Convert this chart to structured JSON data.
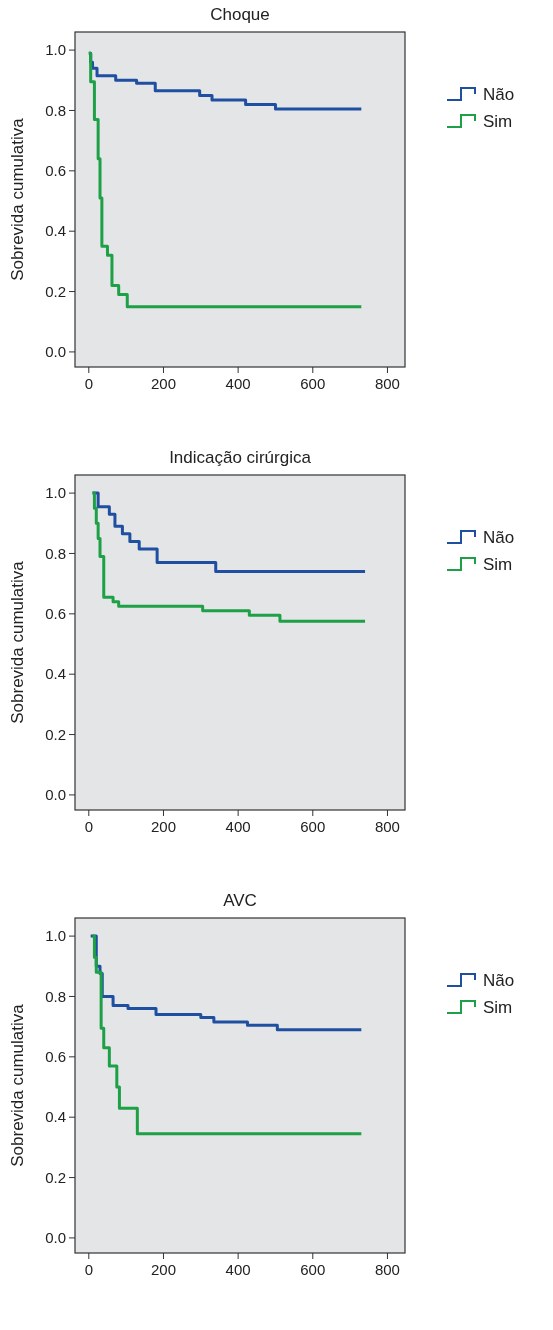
{
  "chart_data": [
    {
      "type": "step",
      "title": "Choque",
      "ylabel": "Sobrevida cumulativa",
      "xlim": [
        -37,
        847
      ],
      "ylim": [
        -0.05,
        1.06
      ],
      "xticks": [
        0,
        200,
        400,
        600,
        800
      ],
      "yticks": [
        {
          "value": 0,
          "label": "0.0"
        },
        {
          "value": 0.2,
          "label": "0.2"
        },
        {
          "value": 0.4,
          "label": "0.4"
        },
        {
          "value": 0.6,
          "label": "0.6"
        },
        {
          "value": 0.8,
          "label": "0.8"
        },
        {
          "value": 1,
          "label": "1.0"
        }
      ],
      "legend": "right",
      "grid": false,
      "series": [
        {
          "name": "Não",
          "color": "#1f4fa0",
          "x": [
            0,
            5,
            10,
            22,
            72,
            128,
            178,
            297,
            330,
            420,
            500,
            730
          ],
          "values": [
            0.99,
            0.96,
            0.94,
            0.915,
            0.9,
            0.89,
            0.865,
            0.85,
            0.835,
            0.82,
            0.805,
            0.805
          ]
        },
        {
          "name": "Sim",
          "color": "#1ea047",
          "x": [
            0,
            5,
            15,
            25,
            30,
            35,
            50,
            62,
            80,
            103,
            730
          ],
          "values": [
            0.99,
            0.895,
            0.77,
            0.64,
            0.51,
            0.35,
            0.32,
            0.22,
            0.19,
            0.15,
            0.15
          ]
        }
      ]
    },
    {
      "type": "step",
      "title": "Indicação cirúrgica",
      "ylabel": "Sobrevida cumulativa",
      "xlim": [
        -37,
        847
      ],
      "ylim": [
        -0.05,
        1.06
      ],
      "xticks": [
        0,
        200,
        400,
        600,
        800
      ],
      "yticks": [
        {
          "value": 0,
          "label": "0.0"
        },
        {
          "value": 0.2,
          "label": "0.2"
        },
        {
          "value": 0.4,
          "label": "0.4"
        },
        {
          "value": 0.6,
          "label": "0.6"
        },
        {
          "value": 0.8,
          "label": "0.8"
        },
        {
          "value": 1,
          "label": "1.0"
        }
      ],
      "legend": "right",
      "grid": false,
      "series": [
        {
          "name": "Não",
          "color": "#1f4fa0",
          "x": [
            10,
            25,
            55,
            70,
            90,
            110,
            135,
            183,
            340,
            740
          ],
          "values": [
            1.0,
            0.955,
            0.93,
            0.89,
            0.865,
            0.84,
            0.815,
            0.77,
            0.74,
            0.74
          ]
        },
        {
          "name": "Sim",
          "color": "#1ea047",
          "x": [
            10,
            15,
            20,
            25,
            30,
            40,
            65,
            80,
            305,
            430,
            512,
            740
          ],
          "values": [
            1.0,
            0.95,
            0.9,
            0.85,
            0.79,
            0.655,
            0.64,
            0.625,
            0.61,
            0.595,
            0.575,
            0.575
          ]
        }
      ]
    },
    {
      "type": "step",
      "title": "AVC",
      "ylabel": "Sobrevida cumulativa",
      "xlim": [
        -37,
        847
      ],
      "ylim": [
        -0.05,
        1.06
      ],
      "xticks": [
        0,
        200,
        400,
        600,
        800
      ],
      "yticks": [
        {
          "value": 0,
          "label": "0.0"
        },
        {
          "value": 0.2,
          "label": "0.2"
        },
        {
          "value": 0.4,
          "label": "0.4"
        },
        {
          "value": 0.6,
          "label": "0.6"
        },
        {
          "value": 0.8,
          "label": "0.8"
        },
        {
          "value": 1,
          "label": "1.0"
        }
      ],
      "legend": "right",
      "grid": false,
      "series": [
        {
          "name": "Não",
          "color": "#1f4fa0",
          "x": [
            5,
            20,
            30,
            36,
            65,
            105,
            180,
            300,
            335,
            425,
            505,
            730
          ],
          "values": [
            1.0,
            0.9,
            0.876,
            0.8,
            0.77,
            0.76,
            0.74,
            0.73,
            0.715,
            0.705,
            0.69,
            0.69
          ]
        },
        {
          "name": "Sim",
          "color": "#1ea047",
          "x": [
            10,
            15,
            20,
            33,
            40,
            55,
            75,
            82,
            130,
            730
          ],
          "values": [
            1.0,
            0.93,
            0.88,
            0.695,
            0.63,
            0.57,
            0.5,
            0.43,
            0.345,
            0.345
          ]
        }
      ]
    }
  ]
}
